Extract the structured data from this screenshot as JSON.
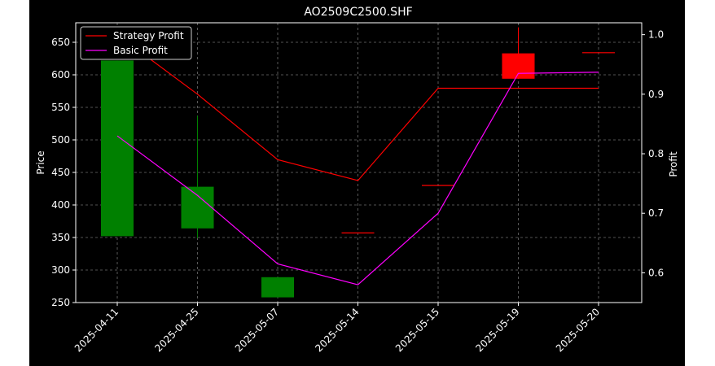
{
  "chart_data": {
    "type": "candlestick+line",
    "title": "AO2509C2500.SHF",
    "ylabel_left": "Price",
    "ylabel_right": "Profit",
    "categories": [
      "2025-04-11",
      "2025-04-25",
      "2025-05-07",
      "2025-05-14",
      "2025-05-15",
      "2025-05-19",
      "2025-05-20"
    ],
    "ylim_left": [
      250,
      680
    ],
    "ylim_right": [
      0.55,
      1.02
    ],
    "yticks_left": [
      250,
      300,
      350,
      400,
      450,
      500,
      550,
      600,
      650
    ],
    "yticks_right": [
      0.6,
      0.7,
      0.8,
      0.9,
      1.0
    ],
    "ytick_labels_right": [
      "0.6",
      "0.7",
      "0.8",
      "0.9",
      "1.0"
    ],
    "grid": true,
    "legend_position": "top-left",
    "candles": [
      {
        "date": "2025-04-11",
        "open": 622,
        "close": 352,
        "high": 622,
        "low": 352
      },
      {
        "date": "2025-04-25",
        "open": 428,
        "close": 364,
        "high": 537,
        "low": 349
      },
      {
        "date": "2025-05-07",
        "open": 289,
        "close": 258,
        "high": 289,
        "low": 258
      },
      {
        "date": "2025-05-14",
        "open": 357,
        "close": 357,
        "high": 357,
        "low": 357
      },
      {
        "date": "2025-05-15",
        "open": 430,
        "close": 430,
        "high": 430,
        "low": 430
      },
      {
        "date": "2025-05-19",
        "open": 594,
        "close": 633,
        "high": 673,
        "low": 594
      },
      {
        "date": "2025-05-20",
        "open": 634,
        "close": 634,
        "high": 634,
        "low": 634
      }
    ],
    "series": [
      {
        "name": "Strategy Profit",
        "axis": "right",
        "color": "#ff0000",
        "values": [
          1.0,
          0.9,
          0.79,
          0.755,
          0.91,
          0.91,
          0.91
        ]
      },
      {
        "name": "Basic Profit",
        "axis": "right",
        "color": "#ff00ff",
        "values": [
          0.83,
          0.73,
          0.615,
          0.58,
          0.7,
          0.935,
          0.937
        ]
      }
    ],
    "colors": {
      "background": "#000000",
      "axes_text": "#ffffff",
      "grid": "#6e6e6e",
      "candle_up": "#ff0000",
      "candle_down": "#008000"
    }
  }
}
